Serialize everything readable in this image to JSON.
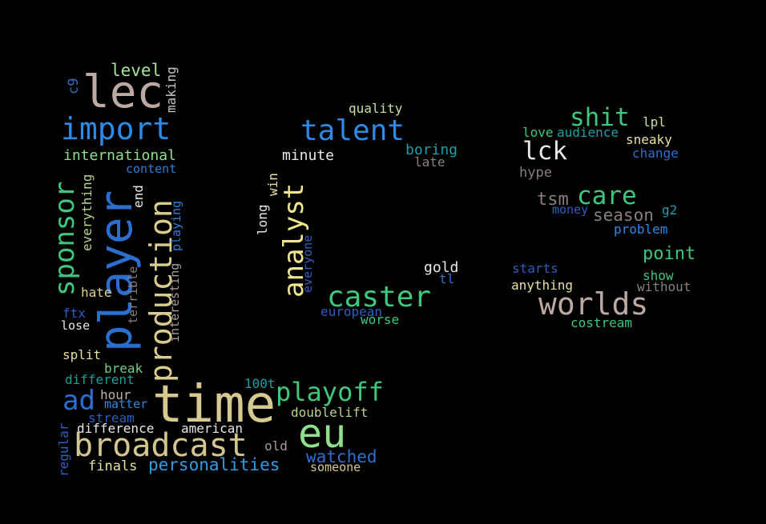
{
  "words": [
    {
      "text": "lec",
      "color": "#bca9a2"
    },
    {
      "text": "import",
      "color": "#2b8ae6"
    },
    {
      "text": "level",
      "color": "#a6e39a"
    },
    {
      "text": "making",
      "color": "#c7c7c7"
    },
    {
      "text": "c9",
      "color": "#2d6fc2"
    },
    {
      "text": "international",
      "color": "#8fe08a"
    },
    {
      "text": "content",
      "color": "#2d7fd8"
    },
    {
      "text": "sponsor",
      "color": "#3ec77d"
    },
    {
      "text": "player",
      "color": "#2a6fd0"
    },
    {
      "text": "production",
      "color": "#d9cc8f"
    },
    {
      "text": "everything",
      "color": "#b9d38d"
    },
    {
      "text": "end",
      "color": "#e8e8e8"
    },
    {
      "text": "playing",
      "color": "#2d7fd8"
    },
    {
      "text": "interesting",
      "color": "#a89a95"
    },
    {
      "text": "terrible",
      "color": "#8a7f7a"
    },
    {
      "text": "hate",
      "color": "#e0d28e"
    },
    {
      "text": "ftx",
      "color": "#2d5fc7"
    },
    {
      "text": "lose",
      "color": "#e8e8e8"
    },
    {
      "text": "split",
      "color": "#e8e0a0"
    },
    {
      "text": "break",
      "color": "#6fd07e"
    },
    {
      "text": "different",
      "color": "#18a09a"
    },
    {
      "text": "ad",
      "color": "#2d6fd0"
    },
    {
      "text": "hour",
      "color": "#c2b0a6"
    },
    {
      "text": "matter",
      "color": "#2d8ad8"
    },
    {
      "text": "stream",
      "color": "#2d5fc2"
    },
    {
      "text": "time",
      "color": "#d6c98f"
    },
    {
      "text": "regular",
      "color": "#2d5fc2"
    },
    {
      "text": "difference",
      "color": "#e8e8e8"
    },
    {
      "text": "american",
      "color": "#e8e8e8"
    },
    {
      "text": "broadcast",
      "color": "#d2c58f"
    },
    {
      "text": "finals",
      "color": "#e8e0a0"
    },
    {
      "text": "personalities",
      "color": "#2d9ee6"
    },
    {
      "text": "100t",
      "color": "#1aa0a8"
    },
    {
      "text": "playoff",
      "color": "#3ec77d"
    },
    {
      "text": "doublelift",
      "color": "#b9d38d"
    },
    {
      "text": "eu",
      "color": "#8fe08a"
    },
    {
      "text": "old",
      "color": "#a89a95"
    },
    {
      "text": "watched",
      "color": "#2d6fd0"
    },
    {
      "text": "someone",
      "color": "#d8c890"
    },
    {
      "text": "quality",
      "color": "#c7e0a0"
    },
    {
      "text": "talent",
      "color": "#2d8ae6"
    },
    {
      "text": "minute",
      "color": "#e8e8e8"
    },
    {
      "text": "boring",
      "color": "#1aa0a8"
    },
    {
      "text": "late",
      "color": "#8a7f7a"
    },
    {
      "text": "win",
      "color": "#e8e0a0"
    },
    {
      "text": "long",
      "color": "#e8e8e8"
    },
    {
      "text": "analyst",
      "color": "#f0e68c"
    },
    {
      "text": "everyone",
      "color": "#2d5fc2"
    },
    {
      "text": "gold",
      "color": "#e8e8e8"
    },
    {
      "text": "tl",
      "color": "#2d6fd0"
    },
    {
      "text": "caster",
      "color": "#3ec77d"
    },
    {
      "text": "european",
      "color": "#2d5fc2"
    },
    {
      "text": "worse",
      "color": "#3ec77d"
    },
    {
      "text": "shit",
      "color": "#3ec77d"
    },
    {
      "text": "lpl",
      "color": "#c7e0a0"
    },
    {
      "text": "love",
      "color": "#3ec77d"
    },
    {
      "text": "audience",
      "color": "#1aa0a8"
    },
    {
      "text": "sneaky",
      "color": "#e8e0a0"
    },
    {
      "text": "lck",
      "color": "#e8e8e8"
    },
    {
      "text": "change",
      "color": "#2d6fd0"
    },
    {
      "text": "hype",
      "color": "#8a7f7a"
    },
    {
      "text": "tsm",
      "color": "#8a7f7a"
    },
    {
      "text": "care",
      "color": "#3ec77d"
    },
    {
      "text": "money",
      "color": "#2d5fc2"
    },
    {
      "text": "season",
      "color": "#8a7f7a"
    },
    {
      "text": "g2",
      "color": "#1aa0a8"
    },
    {
      "text": "problem",
      "color": "#2d8ae6"
    },
    {
      "text": "point",
      "color": "#3ec77d"
    },
    {
      "text": "starts",
      "color": "#2d5fc2"
    },
    {
      "text": "show",
      "color": "#3ec77d"
    },
    {
      "text": "anything",
      "color": "#e8e0a0"
    },
    {
      "text": "without",
      "color": "#8a7f7a"
    },
    {
      "text": "worlds",
      "color": "#bca9a2"
    },
    {
      "text": "costream",
      "color": "#3ec77d"
    }
  ]
}
